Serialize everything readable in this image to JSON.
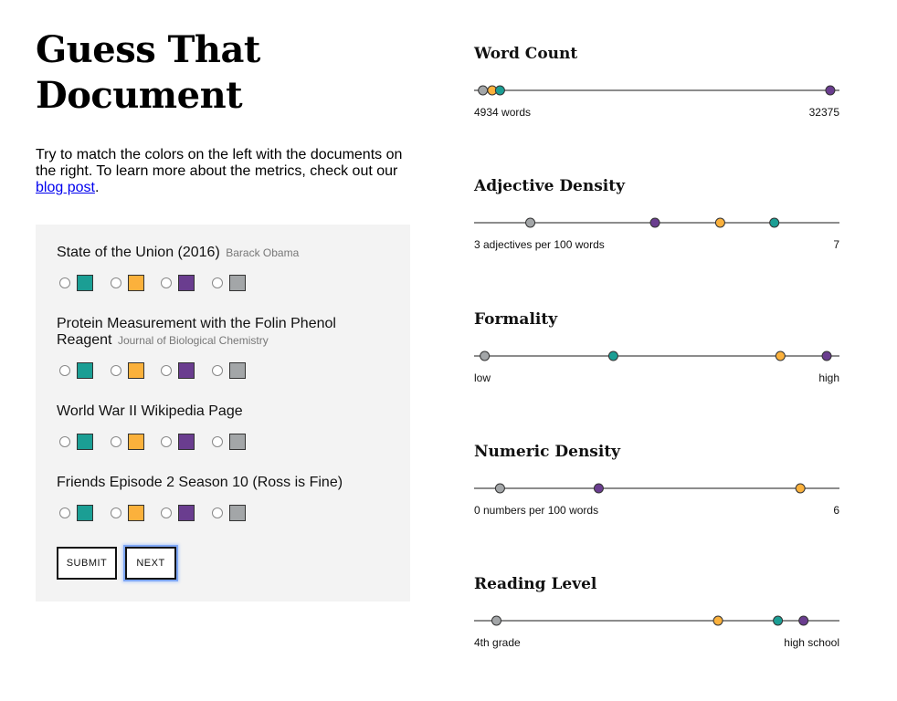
{
  "title": "Guess That Document",
  "intro": {
    "before_link": "Try to match the colors on the left with the documents on the right. To learn more about the metrics, check out our ",
    "link_text": "blog post",
    "after_link": "."
  },
  "colors": {
    "teal": "#1b9e94",
    "orange": "#fbb13c",
    "purple": "#6a3d8f",
    "gray": "#a3a6a8"
  },
  "swatch_order": [
    "teal",
    "orange",
    "purple",
    "gray"
  ],
  "questions": [
    {
      "title": "State of the Union (2016)",
      "author": "Barack Obama"
    },
    {
      "title": "Protein Measurement with the Folin Phenol Reagent",
      "author": "Journal of Biological Chemistry"
    },
    {
      "title": "World War II Wikipedia Page",
      "author": ""
    },
    {
      "title": "Friends Episode 2 Season 10 (Ross is Fine)",
      "author": ""
    }
  ],
  "buttons": {
    "submit": "SUBMIT",
    "next": "NEXT"
  },
  "metrics": [
    {
      "title": "Word Count",
      "min_label": "4934 words",
      "max_label": "32375",
      "points": [
        {
          "color": "gray",
          "value": 0.012
        },
        {
          "color": "orange",
          "value": 0.038
        },
        {
          "color": "teal",
          "value": 0.06
        },
        {
          "color": "purple",
          "value": 0.987
        }
      ]
    },
    {
      "title": "Adjective Density",
      "min_label": "3 adjectives per 100 words",
      "max_label": "7",
      "points": [
        {
          "color": "gray",
          "value": 0.145
        },
        {
          "color": "purple",
          "value": 0.495
        },
        {
          "color": "orange",
          "value": 0.678
        },
        {
          "color": "teal",
          "value": 0.83
        }
      ]
    },
    {
      "title": "Formality",
      "min_label": "low",
      "max_label": "high",
      "points": [
        {
          "color": "gray",
          "value": 0.017
        },
        {
          "color": "teal",
          "value": 0.378
        },
        {
          "color": "orange",
          "value": 0.847
        },
        {
          "color": "purple",
          "value": 0.977
        }
      ]
    },
    {
      "title": "Numeric Density",
      "min_label": "0 numbers per 100 words",
      "max_label": "6",
      "points": [
        {
          "color": "gray",
          "value": 0.06
        },
        {
          "color": "purple",
          "value": 0.337
        },
        {
          "color": "orange",
          "value": 0.903
        }
      ]
    },
    {
      "title": "Reading Level",
      "min_label": "4th grade",
      "max_label": "high school",
      "points": [
        {
          "color": "gray",
          "value": 0.05
        },
        {
          "color": "orange",
          "value": 0.672
        },
        {
          "color": "teal",
          "value": 0.84
        },
        {
          "color": "purple",
          "value": 0.912
        }
      ]
    }
  ]
}
